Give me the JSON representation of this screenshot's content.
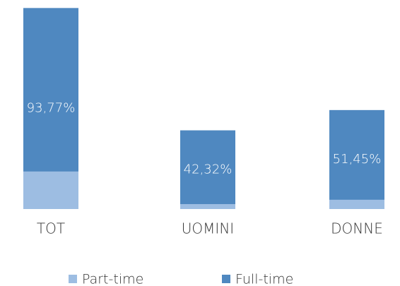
{
  "chart_data": {
    "type": "bar",
    "stacked": true,
    "categories": [
      "TOT",
      "UOMINI",
      "DONNE"
    ],
    "series": [
      {
        "name": "Part-time",
        "color": "#9dbde2",
        "values": [
          21.5,
          2.8,
          5.3
        ]
      },
      {
        "name": "Full-time",
        "color": "#4f88c0",
        "values": [
          93.77,
          42.32,
          51.45
        ],
        "value_labels": [
          "93,77%",
          "42,32%",
          "51,45%"
        ]
      }
    ],
    "ylim": [
      0,
      115
    ],
    "legend": "bottom"
  }
}
